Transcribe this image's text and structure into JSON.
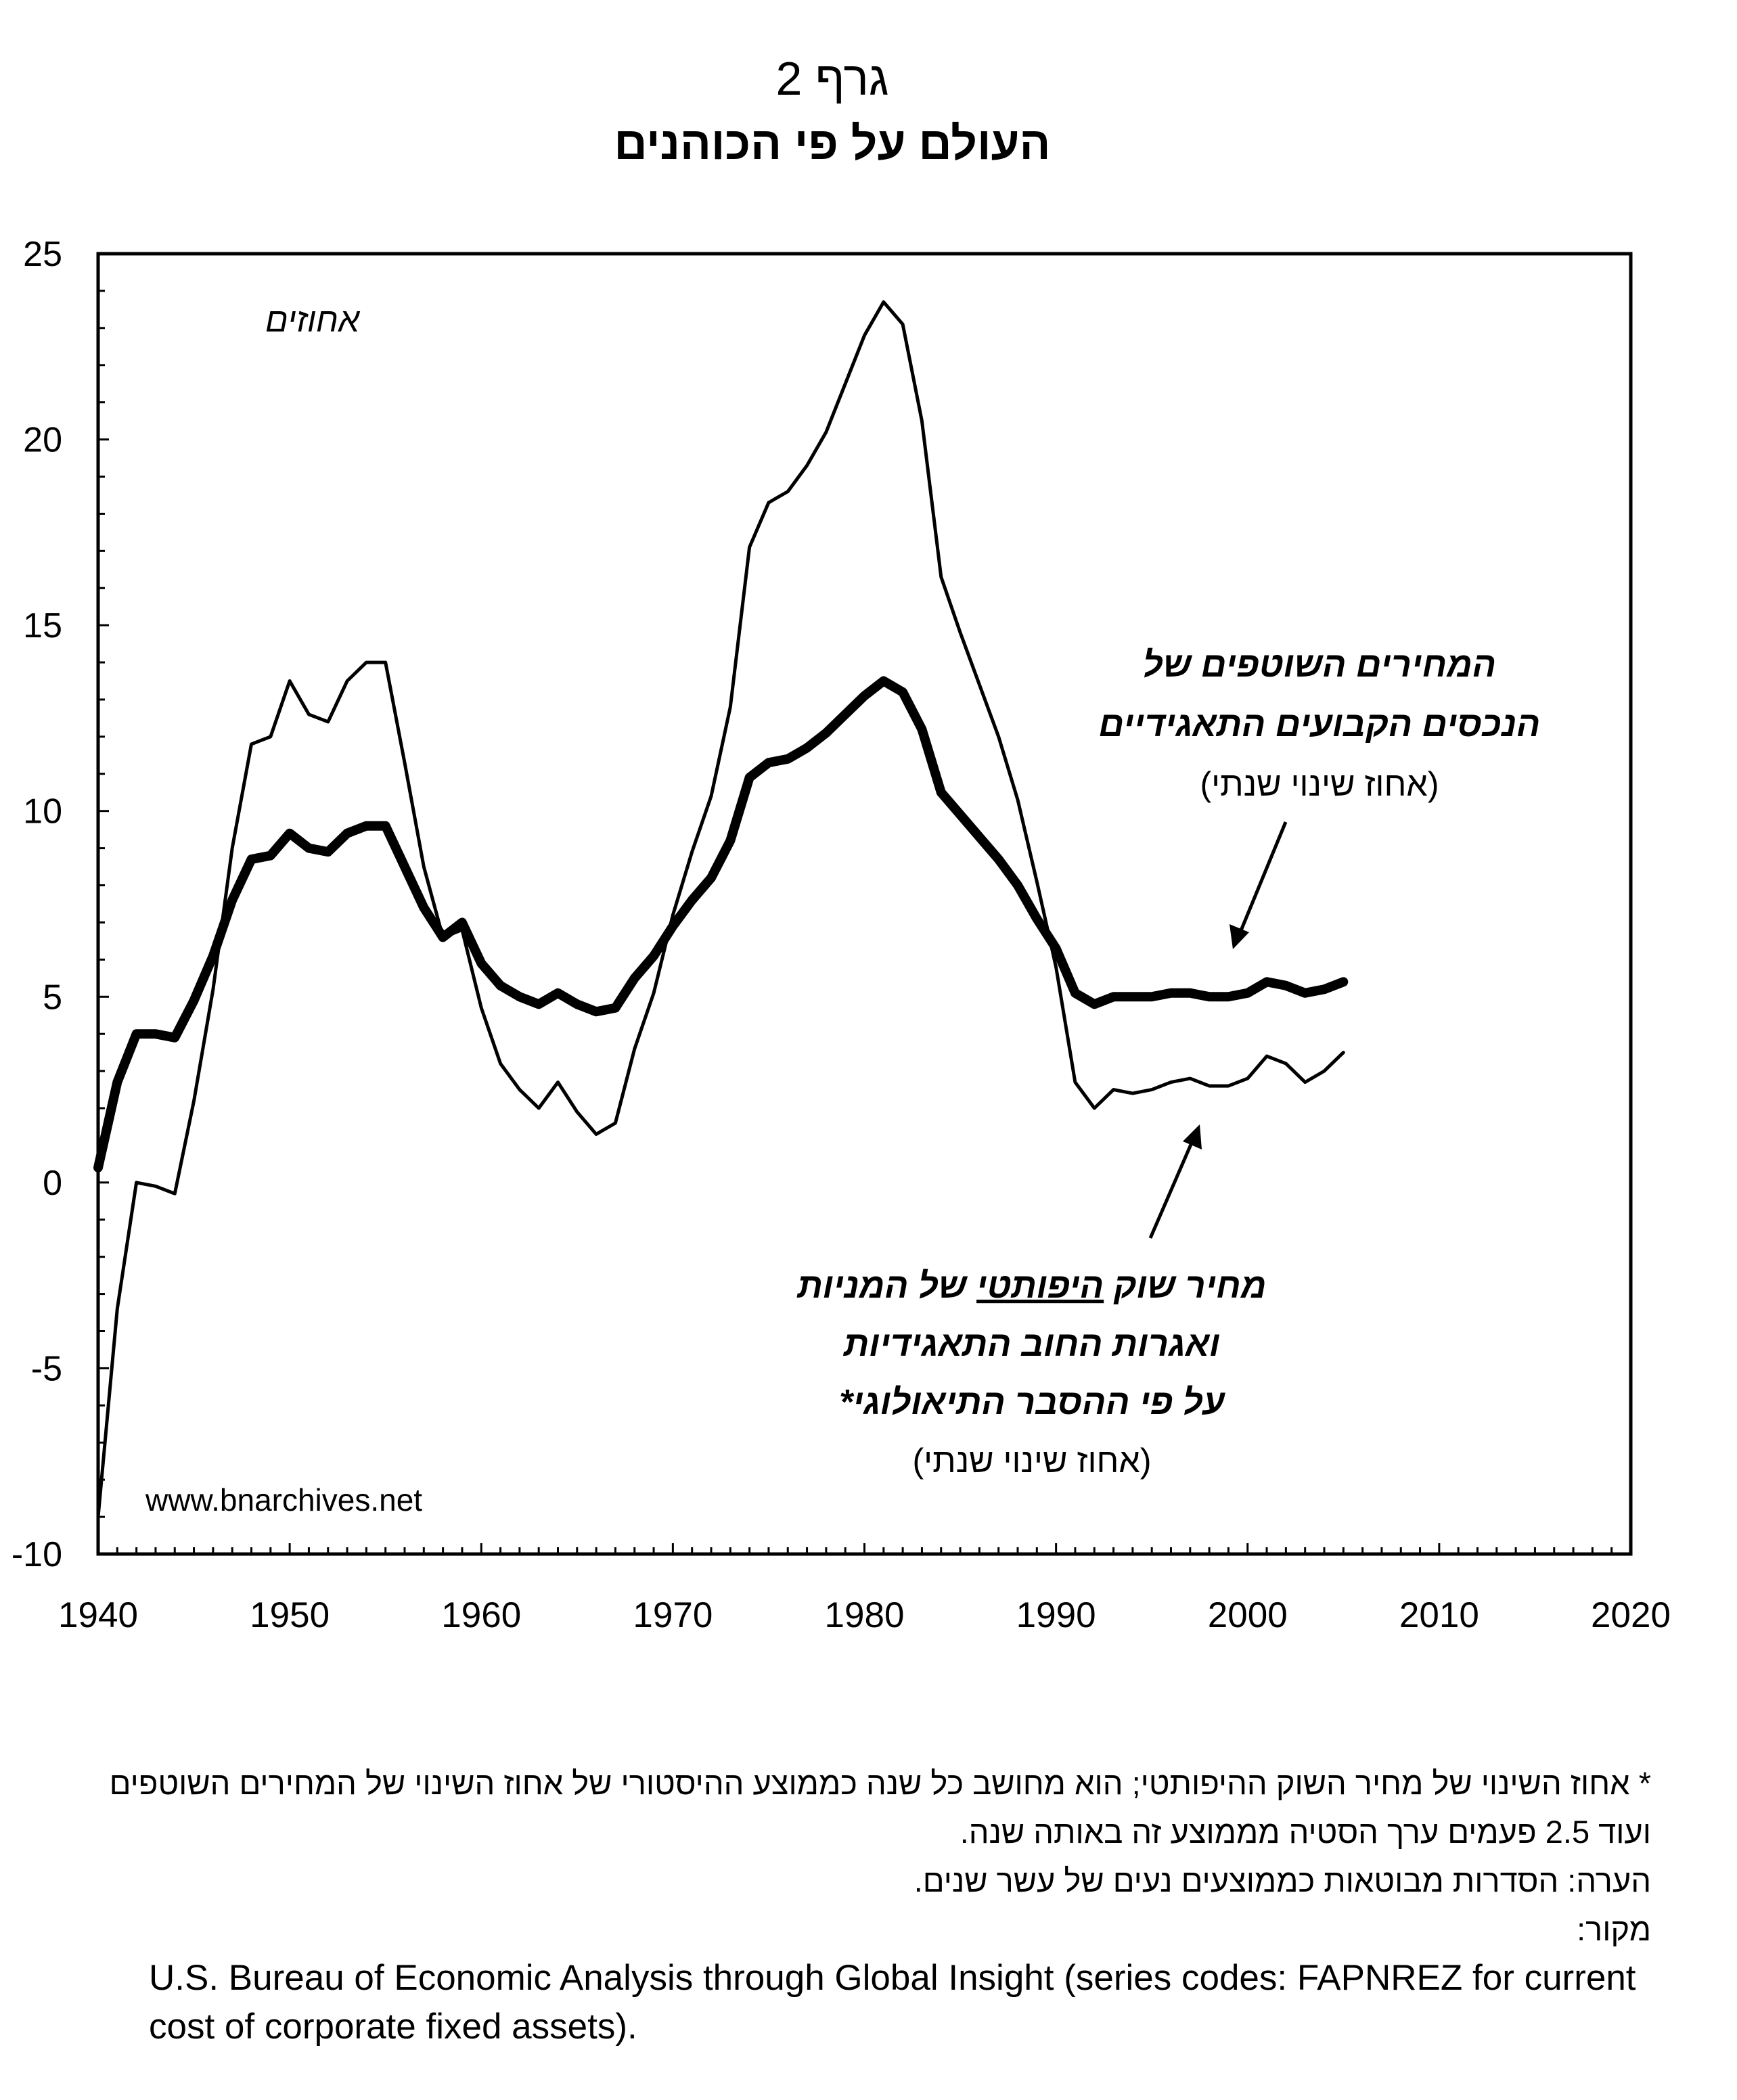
{
  "title": "גרף 2",
  "subtitle": "העולם על פי הכוהנים",
  "colors": {
    "line": "#000000",
    "background": "#ffffff"
  },
  "chart_data": {
    "type": "line",
    "unit_label": "אחוזים",
    "xlim": [
      1940,
      2020
    ],
    "ylim": [
      -10,
      25
    ],
    "x_ticks": [
      1940,
      1950,
      1960,
      1970,
      1980,
      1990,
      2000,
      2010,
      2020
    ],
    "y_ticks": [
      -10,
      -5,
      0,
      5,
      10,
      15,
      20,
      25
    ],
    "y_minor_step": 1,
    "x_minor_step": 1,
    "grid": false,
    "legend": "none",
    "series": [
      {
        "style": "thin",
        "label_lines": [
          "המחירים השוטפים של",
          "הנכסים הקבועים התאגידיים",
          "(אחוז שינוי שנתי)"
        ],
        "x": [
          1940,
          1941,
          1942,
          1943,
          1944,
          1945,
          1946,
          1947,
          1948,
          1949,
          1950,
          1951,
          1952,
          1953,
          1954,
          1955,
          1956,
          1957,
          1958,
          1959,
          1960,
          1961,
          1962,
          1963,
          1964,
          1965,
          1966,
          1967,
          1968,
          1969,
          1970,
          1971,
          1972,
          1973,
          1974,
          1975,
          1976,
          1977,
          1978,
          1979,
          1980,
          1981,
          1982,
          1983,
          1984,
          1985,
          1986,
          1987,
          1988,
          1989,
          1990,
          1991,
          1992,
          1993,
          1994,
          1995,
          1996,
          1997,
          1998,
          1999,
          2000,
          2001,
          2002,
          2003,
          2004,
          2005
        ],
        "values": [
          -9.0,
          -3.4,
          0.0,
          -0.1,
          -0.3,
          2.2,
          5.2,
          9.0,
          11.8,
          12.0,
          13.5,
          12.6,
          12.4,
          13.5,
          14.0,
          14.0,
          11.3,
          8.5,
          6.6,
          6.8,
          4.7,
          3.2,
          2.5,
          2.0,
          2.7,
          1.9,
          1.3,
          1.6,
          3.6,
          5.1,
          7.2,
          8.9,
          10.4,
          12.8,
          17.1,
          18.3,
          18.6,
          19.3,
          20.2,
          21.5,
          22.8,
          23.7,
          23.1,
          20.5,
          16.3,
          14.8,
          13.4,
          12.0,
          10.3,
          8.1,
          5.8,
          2.7,
          2.0,
          2.5,
          2.4,
          2.5,
          2.7,
          2.8,
          2.6,
          2.6,
          2.8,
          3.4,
          3.2,
          2.7,
          3.0,
          3.5
        ]
      },
      {
        "style": "thick",
        "label_lines": [
          "מחיר שוק היפותטי של המניות",
          "ואגרות החוב התאגידיות",
          "על פי ההסבר התיאולוגי*",
          "(אחוז שינוי שנתי)"
        ],
        "x": [
          1940,
          1941,
          1942,
          1943,
          1944,
          1945,
          1946,
          1947,
          1948,
          1949,
          1950,
          1951,
          1952,
          1953,
          1954,
          1955,
          1956,
          1957,
          1958,
          1959,
          1960,
          1961,
          1962,
          1963,
          1964,
          1965,
          1966,
          1967,
          1968,
          1969,
          1970,
          1971,
          1972,
          1973,
          1974,
          1975,
          1976,
          1977,
          1978,
          1979,
          1980,
          1981,
          1982,
          1983,
          1984,
          1985,
          1986,
          1987,
          1988,
          1989,
          1990,
          1991,
          1992,
          1993,
          1994,
          1995,
          1996,
          1997,
          1998,
          1999,
          2000,
          2001,
          2002,
          2003,
          2004,
          2005
        ],
        "values": [
          0.4,
          2.7,
          4.0,
          4.0,
          3.9,
          4.9,
          6.1,
          7.6,
          8.7,
          8.8,
          9.4,
          9.0,
          8.9,
          9.4,
          9.6,
          9.6,
          8.5,
          7.4,
          6.6,
          7.0,
          5.9,
          5.3,
          5.0,
          4.8,
          5.1,
          4.8,
          4.6,
          4.7,
          5.5,
          6.1,
          6.9,
          7.6,
          8.2,
          9.2,
          10.9,
          11.3,
          11.4,
          11.7,
          12.1,
          12.6,
          13.1,
          13.5,
          13.2,
          12.2,
          10.5,
          9.9,
          9.3,
          8.7,
          8.0,
          7.1,
          6.3,
          5.1,
          4.8,
          5.0,
          5.0,
          5.0,
          5.1,
          5.1,
          5.0,
          5.0,
          5.1,
          5.4,
          5.3,
          5.1,
          5.2,
          5.4
        ]
      }
    ],
    "label_emphasis": "היפותטי"
  },
  "watermark": "www.bnarchives.net",
  "footnotes": {
    "asterisk_note": "* אחוז השינוי של מחיר השוק ההיפותטי; הוא מחושב כל שנה כממוצע ההיסטורי של אחוז השינוי של המחירים השוטפים ועוד 2.5 פעמים ערך הסטיה מממוצע זה באותה שנה.",
    "note": "הערה: הסדרות מבוטאות כממוצעים נעים של עשר שנים.",
    "source_label": "מקור:",
    "source_text": "U.S. Bureau of Economic Analysis through Global Insight (series codes: FAPNREZ for current cost of corporate fixed assets)."
  }
}
